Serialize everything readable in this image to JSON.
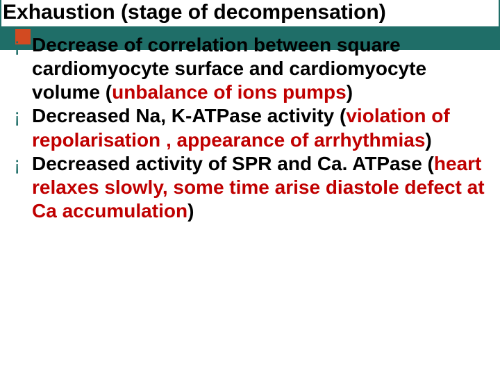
{
  "slide": {
    "title": "Exhaustion (stage of decompensation)",
    "title_fontsize": 30,
    "header_band_color": "#1f6e68",
    "accent_square_color": "#d24a21",
    "background_color": "#ffffff",
    "bullet_marker": "¡",
    "bullet_marker_color": "#1f6e68",
    "body_fontsize": 28,
    "body_color": "#000000",
    "highlight_color": "#c00000",
    "items": [
      {
        "pre": "Decrease of correlation between square cardiomyocyte surface and cardiomyocyte volume (",
        "hl": "unbalance of ions pumps",
        "post": ")"
      },
      {
        "pre": "Decreased Na, K-ATPase activity (",
        "hl": "violation of repolarisation , appearance of arrhythmias",
        "post": ")"
      },
      {
        "pre": "Decreased activity of SPR and Ca. ATPase (",
        "hl": "heart relaxes slowly, some time  arise diastole defect at Ca accumulation",
        "post": ")"
      }
    ]
  }
}
